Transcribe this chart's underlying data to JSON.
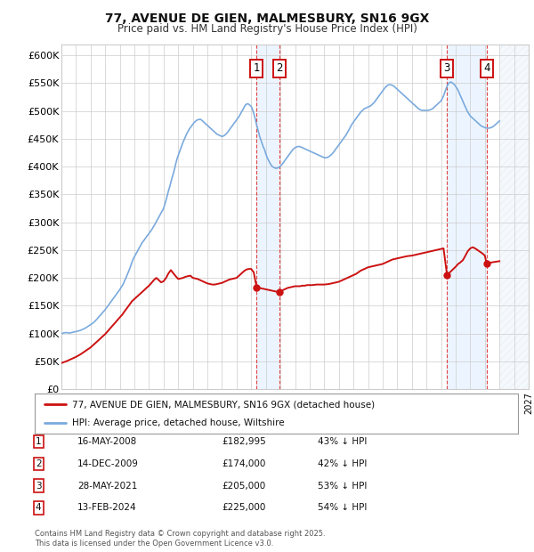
{
  "title": "77, AVENUE DE GIEN, MALMESBURY, SN16 9GX",
  "subtitle": "Price paid vs. HM Land Registry's House Price Index (HPI)",
  "background_color": "#ffffff",
  "grid_color": "#cccccc",
  "hpi_color": "#7aaadd",
  "price_color": "#cc1111",
  "shade_color": "#ddeeff",
  "xlim_start": 1995.0,
  "xlim_end": 2027.0,
  "ylim": [
    0,
    620000
  ],
  "yticks": [
    0,
    50000,
    100000,
    150000,
    200000,
    250000,
    300000,
    350000,
    400000,
    450000,
    500000,
    550000,
    600000
  ],
  "ytick_labels": [
    "£0",
    "£50K",
    "£100K",
    "£150K",
    "£200K",
    "£250K",
    "£300K",
    "£350K",
    "£400K",
    "£450K",
    "£500K",
    "£550K",
    "£600K"
  ],
  "transactions": [
    {
      "num": 1,
      "date": "16-MAY-2008",
      "price": 182995,
      "pct": "43%",
      "x": 2008.37
    },
    {
      "num": 2,
      "date": "14-DEC-2009",
      "price": 174000,
      "pct": "42%",
      "x": 2009.95
    },
    {
      "num": 3,
      "date": "28-MAY-2021",
      "price": 205000,
      "pct": "53%",
      "x": 2021.41
    },
    {
      "num": 4,
      "date": "13-FEB-2024",
      "price": 225000,
      "pct": "54%",
      "x": 2024.12
    }
  ],
  "legend_line1": "77, AVENUE DE GIEN, MALMESBURY, SN16 9GX (detached house)",
  "legend_line2": "HPI: Average price, detached house, Wiltshire",
  "footer_line1": "Contains HM Land Registry data © Crown copyright and database right 2025.",
  "footer_line2": "This data is licensed under the Open Government Licence v3.0.",
  "hpi_x": [
    1995.0,
    1995.08,
    1995.17,
    1995.25,
    1995.33,
    1995.42,
    1995.5,
    1995.58,
    1995.67,
    1995.75,
    1995.83,
    1995.92,
    1996.0,
    1996.08,
    1996.17,
    1996.25,
    1996.33,
    1996.42,
    1996.5,
    1996.58,
    1996.67,
    1996.75,
    1996.83,
    1996.92,
    1997.0,
    1997.08,
    1997.17,
    1997.25,
    1997.33,
    1997.42,
    1997.5,
    1997.58,
    1997.67,
    1997.75,
    1997.83,
    1997.92,
    1998.0,
    1998.08,
    1998.17,
    1998.25,
    1998.33,
    1998.42,
    1998.5,
    1998.58,
    1998.67,
    1998.75,
    1998.83,
    1998.92,
    1999.0,
    1999.08,
    1999.17,
    1999.25,
    1999.33,
    1999.42,
    1999.5,
    1999.58,
    1999.67,
    1999.75,
    1999.83,
    1999.92,
    2000.0,
    2000.08,
    2000.17,
    2000.25,
    2000.33,
    2000.42,
    2000.5,
    2000.58,
    2000.67,
    2000.75,
    2000.83,
    2000.92,
    2001.0,
    2001.08,
    2001.17,
    2001.25,
    2001.33,
    2001.42,
    2001.5,
    2001.58,
    2001.67,
    2001.75,
    2001.83,
    2001.92,
    2002.0,
    2002.08,
    2002.17,
    2002.25,
    2002.33,
    2002.42,
    2002.5,
    2002.58,
    2002.67,
    2002.75,
    2002.83,
    2002.92,
    2003.0,
    2003.08,
    2003.17,
    2003.25,
    2003.33,
    2003.42,
    2003.5,
    2003.58,
    2003.67,
    2003.75,
    2003.83,
    2003.92,
    2004.0,
    2004.08,
    2004.17,
    2004.25,
    2004.33,
    2004.42,
    2004.5,
    2004.58,
    2004.67,
    2004.75,
    2004.83,
    2004.92,
    2005.0,
    2005.08,
    2005.17,
    2005.25,
    2005.33,
    2005.42,
    2005.5,
    2005.58,
    2005.67,
    2005.75,
    2005.83,
    2005.92,
    2006.0,
    2006.08,
    2006.17,
    2006.25,
    2006.33,
    2006.42,
    2006.5,
    2006.58,
    2006.67,
    2006.75,
    2006.83,
    2006.92,
    2007.0,
    2007.08,
    2007.17,
    2007.25,
    2007.33,
    2007.42,
    2007.5,
    2007.58,
    2007.67,
    2007.75,
    2007.83,
    2007.92,
    2008.0,
    2008.08,
    2008.17,
    2008.25,
    2008.33,
    2008.42,
    2008.5,
    2008.58,
    2008.67,
    2008.75,
    2008.83,
    2008.92,
    2009.0,
    2009.08,
    2009.17,
    2009.25,
    2009.33,
    2009.42,
    2009.5,
    2009.58,
    2009.67,
    2009.75,
    2009.83,
    2009.92,
    2010.0,
    2010.08,
    2010.17,
    2010.25,
    2010.33,
    2010.42,
    2010.5,
    2010.58,
    2010.67,
    2010.75,
    2010.83,
    2010.92,
    2011.0,
    2011.08,
    2011.17,
    2011.25,
    2011.33,
    2011.42,
    2011.5,
    2011.58,
    2011.67,
    2011.75,
    2011.83,
    2011.92,
    2012.0,
    2012.08,
    2012.17,
    2012.25,
    2012.33,
    2012.42,
    2012.5,
    2012.58,
    2012.67,
    2012.75,
    2012.83,
    2012.92,
    2013.0,
    2013.08,
    2013.17,
    2013.25,
    2013.33,
    2013.42,
    2013.5,
    2013.58,
    2013.67,
    2013.75,
    2013.83,
    2013.92,
    2014.0,
    2014.08,
    2014.17,
    2014.25,
    2014.33,
    2014.42,
    2014.5,
    2014.58,
    2014.67,
    2014.75,
    2014.83,
    2014.92,
    2015.0,
    2015.08,
    2015.17,
    2015.25,
    2015.33,
    2015.42,
    2015.5,
    2015.58,
    2015.67,
    2015.75,
    2015.83,
    2015.92,
    2016.0,
    2016.08,
    2016.17,
    2016.25,
    2016.33,
    2016.42,
    2016.5,
    2016.58,
    2016.67,
    2016.75,
    2016.83,
    2016.92,
    2017.0,
    2017.08,
    2017.17,
    2017.25,
    2017.33,
    2017.42,
    2017.5,
    2017.58,
    2017.67,
    2017.75,
    2017.83,
    2017.92,
    2018.0,
    2018.08,
    2018.17,
    2018.25,
    2018.33,
    2018.42,
    2018.5,
    2018.58,
    2018.67,
    2018.75,
    2018.83,
    2018.92,
    2019.0,
    2019.08,
    2019.17,
    2019.25,
    2019.33,
    2019.42,
    2019.5,
    2019.58,
    2019.67,
    2019.75,
    2019.83,
    2019.92,
    2020.0,
    2020.08,
    2020.17,
    2020.25,
    2020.33,
    2020.42,
    2020.5,
    2020.58,
    2020.67,
    2020.75,
    2020.83,
    2020.92,
    2021.0,
    2021.08,
    2021.17,
    2021.25,
    2021.33,
    2021.42,
    2021.5,
    2021.58,
    2021.67,
    2021.75,
    2021.83,
    2021.92,
    2022.0,
    2022.08,
    2022.17,
    2022.25,
    2022.33,
    2022.42,
    2022.5,
    2022.58,
    2022.67,
    2022.75,
    2022.83,
    2022.92,
    2023.0,
    2023.08,
    2023.17,
    2023.25,
    2023.33,
    2023.42,
    2023.5,
    2023.58,
    2023.67,
    2023.75,
    2023.83,
    2023.92,
    2024.0,
    2024.08,
    2024.17,
    2024.25,
    2024.33,
    2024.42,
    2024.5,
    2024.58,
    2024.67,
    2024.75,
    2024.83,
    2024.92,
    2025.0
  ],
  "hpi_y": [
    100000,
    100500,
    101000,
    101500,
    101800,
    101200,
    100800,
    101000,
    101500,
    102000,
    102500,
    103000,
    103500,
    104000,
    104500,
    105200,
    106000,
    107000,
    108000,
    109000,
    110200,
    111500,
    113000,
    114500,
    116000,
    117500,
    119000,
    121000,
    123000,
    125500,
    128000,
    130500,
    133000,
    135500,
    138000,
    140500,
    143000,
    146000,
    149000,
    152000,
    155000,
    158000,
    161000,
    164000,
    167000,
    170000,
    173000,
    176000,
    179000,
    182500,
    186000,
    190000,
    195000,
    200000,
    205000,
    210000,
    216000,
    222000,
    228000,
    234000,
    238000,
    242000,
    246000,
    250000,
    254000,
    258000,
    262000,
    265000,
    268000,
    271000,
    274000,
    277000,
    280000,
    283000,
    286000,
    289500,
    293000,
    297000,
    301000,
    305000,
    309000,
    313000,
    317000,
    321000,
    325000,
    332000,
    340000,
    348000,
    356000,
    364000,
    372000,
    380000,
    388000,
    396000,
    405000,
    414000,
    420000,
    426000,
    432000,
    438000,
    444000,
    449000,
    454000,
    459000,
    463000,
    467000,
    470000,
    473000,
    476000,
    479000,
    481000,
    483000,
    484000,
    484500,
    485000,
    484000,
    482000,
    480000,
    478000,
    476000,
    474000,
    472000,
    470000,
    468000,
    466000,
    464000,
    462000,
    460000,
    458000,
    457000,
    456000,
    455000,
    454000,
    455000,
    456000,
    458000,
    460000,
    463000,
    466000,
    469000,
    472000,
    475000,
    478000,
    481000,
    484000,
    487000,
    490000,
    494000,
    498000,
    502000,
    506000,
    510000,
    512000,
    513000,
    512000,
    510000,
    508000,
    503000,
    496000,
    488000,
    479000,
    470000,
    462000,
    454000,
    447000,
    441000,
    435000,
    430000,
    423000,
    417000,
    412000,
    408000,
    404000,
    401000,
    399000,
    398000,
    397000,
    397000,
    398000,
    399000,
    401000,
    403000,
    406000,
    409000,
    412000,
    415000,
    418000,
    421000,
    424000,
    427000,
    430000,
    432000,
    434000,
    435000,
    436000,
    436000,
    436000,
    435000,
    434000,
    433000,
    432000,
    431000,
    430000,
    429000,
    428000,
    427000,
    426000,
    425000,
    424000,
    423000,
    422000,
    421000,
    420000,
    419000,
    418000,
    417000,
    416000,
    416000,
    416000,
    417000,
    418000,
    420000,
    422000,
    424000,
    427000,
    430000,
    433000,
    436000,
    439000,
    442000,
    445000,
    448000,
    451000,
    454000,
    457000,
    461000,
    465000,
    469000,
    473000,
    477000,
    480000,
    483000,
    486000,
    489000,
    492000,
    495000,
    498000,
    500000,
    502000,
    504000,
    505000,
    506000,
    507000,
    508000,
    509000,
    511000,
    513000,
    515000,
    518000,
    521000,
    524000,
    527000,
    530000,
    533000,
    536000,
    539000,
    542000,
    544000,
    546000,
    547000,
    547000,
    547000,
    546000,
    545000,
    543000,
    541000,
    539000,
    537000,
    535000,
    533000,
    531000,
    529000,
    527000,
    525000,
    523000,
    521000,
    519000,
    517000,
    515000,
    513000,
    511000,
    509000,
    507000,
    505000,
    503000,
    502000,
    501000,
    501000,
    501000,
    501000,
    501000,
    501000,
    501500,
    502000,
    503000,
    504000,
    506000,
    508000,
    510000,
    512000,
    514000,
    516000,
    518000,
    522000,
    527000,
    533000,
    539000,
    545000,
    549000,
    551000,
    552000,
    551000,
    549000,
    547000,
    544000,
    541000,
    537000,
    532000,
    527000,
    522000,
    517000,
    512000,
    507000,
    502000,
    498000,
    494000,
    491000,
    489000,
    487000,
    485000,
    483000,
    481000,
    479000,
    477000,
    475000,
    473000,
    472000,
    471000,
    470000,
    469500,
    469000,
    469000,
    469500,
    470000,
    471000,
    472000,
    474000,
    476000,
    478000,
    480000,
    482000
  ],
  "price_x": [
    1995.0,
    1995.17,
    1995.33,
    1995.5,
    1995.67,
    1995.83,
    1996.0,
    1996.17,
    1996.33,
    1996.5,
    1996.67,
    1996.83,
    1997.0,
    1997.17,
    1997.33,
    1997.5,
    1997.67,
    1997.83,
    1998.0,
    1998.17,
    1998.33,
    1998.5,
    1998.67,
    1998.83,
    1999.0,
    1999.17,
    1999.33,
    1999.5,
    1999.67,
    1999.83,
    2000.0,
    2000.17,
    2000.33,
    2000.5,
    2000.67,
    2000.83,
    2001.0,
    2001.17,
    2001.33,
    2001.5,
    2001.67,
    2001.83,
    2002.0,
    2002.17,
    2002.33,
    2002.5,
    2002.67,
    2002.83,
    2003.0,
    2003.17,
    2003.33,
    2003.5,
    2003.67,
    2003.83,
    2004.0,
    2004.17,
    2004.33,
    2004.5,
    2004.67,
    2004.83,
    2005.0,
    2005.17,
    2005.33,
    2005.5,
    2005.67,
    2005.83,
    2006.0,
    2006.17,
    2006.33,
    2006.5,
    2006.67,
    2006.83,
    2007.0,
    2007.17,
    2007.33,
    2007.5,
    2007.67,
    2007.83,
    2008.0,
    2008.17,
    2008.37,
    2009.95,
    2010.0,
    2010.17,
    2010.33,
    2010.5,
    2010.67,
    2010.83,
    2011.0,
    2011.17,
    2011.33,
    2011.5,
    2011.67,
    2011.83,
    2012.0,
    2012.17,
    2012.33,
    2012.5,
    2012.67,
    2012.83,
    2013.0,
    2013.17,
    2013.33,
    2013.5,
    2013.67,
    2013.83,
    2014.0,
    2014.17,
    2014.33,
    2014.5,
    2014.67,
    2014.83,
    2015.0,
    2015.17,
    2015.33,
    2015.5,
    2015.67,
    2015.83,
    2016.0,
    2016.17,
    2016.33,
    2016.5,
    2016.67,
    2016.83,
    2017.0,
    2017.17,
    2017.33,
    2017.5,
    2017.67,
    2017.83,
    2018.0,
    2018.17,
    2018.33,
    2018.5,
    2018.67,
    2018.83,
    2019.0,
    2019.17,
    2019.33,
    2019.5,
    2019.67,
    2019.83,
    2020.0,
    2020.17,
    2020.33,
    2020.5,
    2020.67,
    2020.83,
    2021.0,
    2021.17,
    2021.41,
    2022.0,
    2022.17,
    2022.33,
    2022.5,
    2022.67,
    2022.83,
    2023.0,
    2023.17,
    2023.33,
    2023.5,
    2023.67,
    2023.83,
    2024.0,
    2024.12,
    2024.5,
    2025.0
  ],
  "price_y": [
    47000,
    48500,
    50000,
    52000,
    54000,
    56000,
    58000,
    60500,
    63000,
    66000,
    69000,
    72000,
    75000,
    79000,
    83000,
    87000,
    91000,
    95000,
    99000,
    104000,
    109000,
    114000,
    119000,
    124000,
    129000,
    134000,
    140000,
    146000,
    152000,
    158000,
    162000,
    166000,
    170000,
    174000,
    178000,
    182000,
    186000,
    191000,
    196000,
    200000,
    196000,
    192000,
    194000,
    200000,
    208000,
    214000,
    208000,
    203000,
    198000,
    199000,
    200000,
    202000,
    203000,
    204000,
    200000,
    199000,
    198000,
    196000,
    194000,
    192000,
    190000,
    189000,
    188000,
    188000,
    189000,
    190000,
    191000,
    193000,
    195000,
    197000,
    198000,
    199000,
    200000,
    204000,
    208000,
    212000,
    215000,
    216000,
    216000,
    210000,
    182995,
    174000,
    176000,
    178000,
    180000,
    182000,
    183000,
    184000,
    185000,
    185000,
    185000,
    186000,
    186000,
    187000,
    187000,
    187000,
    187500,
    188000,
    188000,
    188000,
    188000,
    188500,
    189000,
    190000,
    191000,
    192000,
    193000,
    195000,
    197000,
    199000,
    201000,
    203000,
    205000,
    207000,
    210000,
    213000,
    215000,
    217000,
    219000,
    220000,
    221000,
    222000,
    223000,
    224000,
    225000,
    227000,
    229000,
    231000,
    233000,
    234000,
    235000,
    236000,
    237000,
    238000,
    239000,
    239500,
    240000,
    241000,
    242000,
    243000,
    244000,
    245000,
    246000,
    247000,
    248000,
    249000,
    250000,
    251000,
    252000,
    253000,
    205000,
    220000,
    225000,
    228000,
    232000,
    240000,
    248000,
    253000,
    255000,
    253000,
    250000,
    247000,
    244000,
    240000,
    225000,
    228000,
    230000
  ]
}
